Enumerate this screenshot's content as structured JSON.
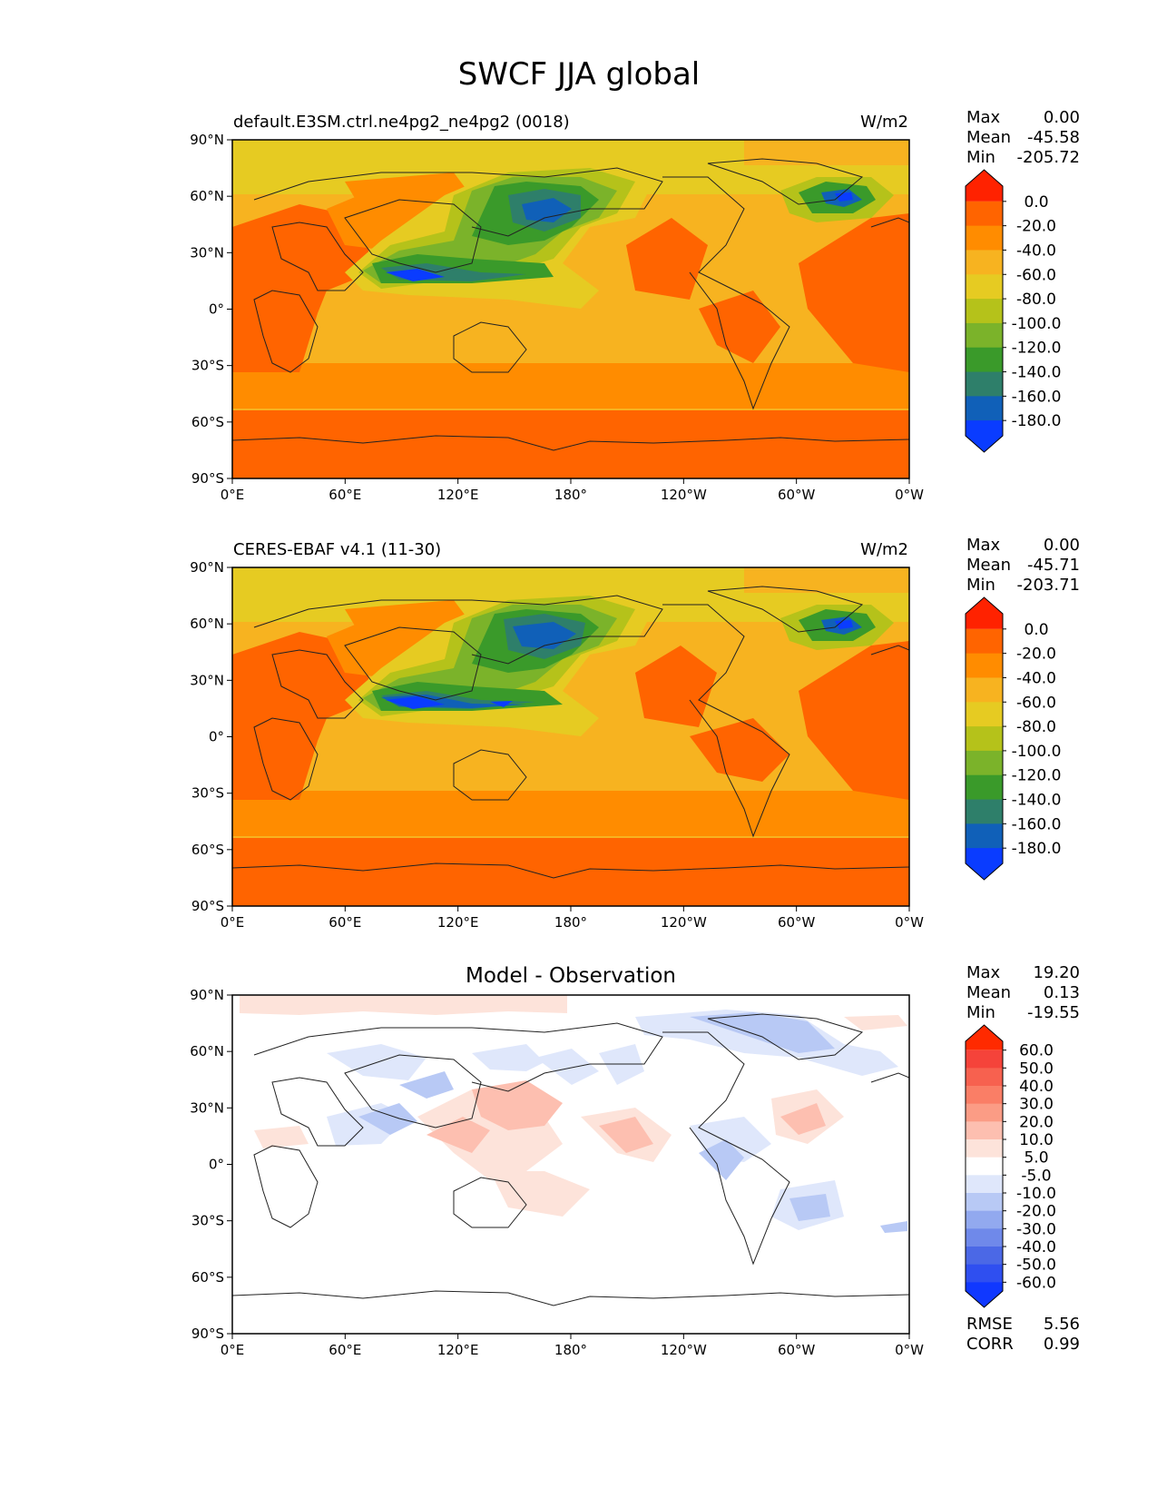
{
  "figure": {
    "title": "SWCF JJA global"
  },
  "chart_data": [
    {
      "type": "heatmap",
      "title_left": "default.E3SM.ctrl.ne4pg2_ne4pg2 (0018)",
      "title_right": "W/m2",
      "x_ticks": [
        "0°E",
        "60°E",
        "120°E",
        "180°",
        "120°W",
        "60°W",
        "0°W"
      ],
      "y_ticks": [
        "90°N",
        "60°N",
        "30°N",
        "0°",
        "30°S",
        "60°S",
        "90°S"
      ],
      "stats": [
        {
          "label": "Max",
          "value": "0.00"
        },
        {
          "label": "Mean",
          "value": "-45.58"
        },
        {
          "label": "Min",
          "value": "-205.72"
        }
      ],
      "colorbar": {
        "ticks": [
          "0.0",
          "-20.0",
          "-40.0",
          "-60.0",
          "-80.0",
          "-100.0",
          "-120.0",
          "-140.0",
          "-160.0",
          "-180.0"
        ],
        "colors": [
          "#ff2200",
          "#ff6400",
          "#ff8c00",
          "#f7b320",
          "#e6cb22",
          "#b5c21a",
          "#7bb32a",
          "#3a9a2a",
          "#2e7f6a",
          "#1060b8",
          "#0a3cff"
        ]
      }
    },
    {
      "type": "heatmap",
      "title_left": "CERES-EBAF v4.1 (11-30)",
      "title_right": "W/m2",
      "x_ticks": [
        "0°E",
        "60°E",
        "120°E",
        "180°",
        "120°W",
        "60°W",
        "0°W"
      ],
      "y_ticks": [
        "90°N",
        "60°N",
        "30°N",
        "0°",
        "30°S",
        "60°S",
        "90°S"
      ],
      "stats": [
        {
          "label": "Max",
          "value": "0.00"
        },
        {
          "label": "Mean",
          "value": "-45.71"
        },
        {
          "label": "Min",
          "value": "-203.71"
        }
      ],
      "colorbar": {
        "ticks": [
          "0.0",
          "-20.0",
          "-40.0",
          "-60.0",
          "-80.0",
          "-100.0",
          "-120.0",
          "-140.0",
          "-160.0",
          "-180.0"
        ],
        "colors": [
          "#ff2200",
          "#ff6400",
          "#ff8c00",
          "#f7b320",
          "#e6cb22",
          "#b5c21a",
          "#7bb32a",
          "#3a9a2a",
          "#2e7f6a",
          "#1060b8",
          "#0a3cff"
        ]
      }
    },
    {
      "type": "heatmap",
      "title_center": "Model - Observation",
      "x_ticks": [
        "0°E",
        "60°E",
        "120°E",
        "180°",
        "120°W",
        "60°W",
        "0°W"
      ],
      "y_ticks": [
        "90°N",
        "60°N",
        "30°N",
        "0°",
        "30°S",
        "60°S",
        "90°S"
      ],
      "stats": [
        {
          "label": "Max",
          "value": "19.20"
        },
        {
          "label": "Mean",
          "value": "0.13"
        },
        {
          "label": "Min",
          "value": "-19.55"
        }
      ],
      "extra_stats": [
        {
          "label": "RMSE",
          "value": "5.56"
        },
        {
          "label": "CORR",
          "value": "0.99"
        }
      ],
      "colorbar": {
        "ticks": [
          "60.0",
          "50.0",
          "40.0",
          "30.0",
          "20.0",
          "10.0",
          "5.0",
          "-5.0",
          "-10.0",
          "-20.0",
          "-30.0",
          "-40.0",
          "-50.0",
          "-60.0"
        ],
        "colors": [
          "#ff2a00",
          "#f5433a",
          "#f7614f",
          "#fa7e66",
          "#fb9c85",
          "#fdbfb0",
          "#fde3da",
          "#ffffff",
          "#dfe7fb",
          "#b8c9f5",
          "#92a9ef",
          "#6f89ea",
          "#4b68e6",
          "#2f4ff0",
          "#1038ff"
        ]
      }
    }
  ]
}
